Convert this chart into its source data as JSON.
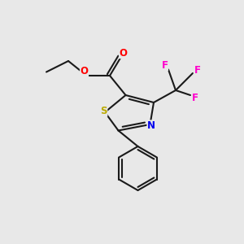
{
  "bg_color": "#e8e8e8",
  "bond_color": "#1a1a1a",
  "bond_width": 1.5,
  "atom_colors": {
    "O": "#ff0000",
    "S": "#bbaa00",
    "N": "#0000ee",
    "F": "#ff00cc",
    "C": "#1a1a1a"
  },
  "font_size_atom": 8.5
}
